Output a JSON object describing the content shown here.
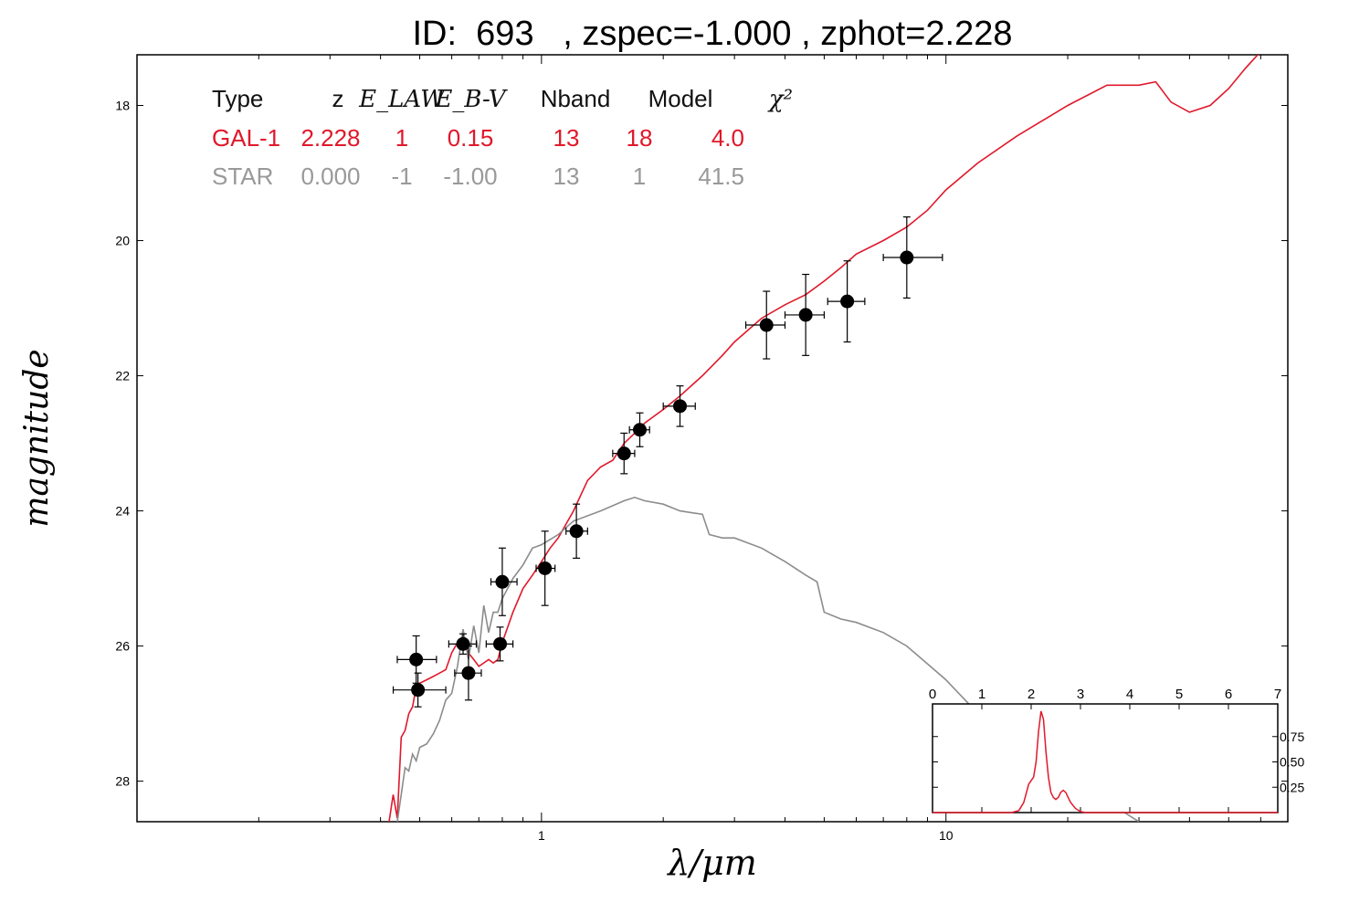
{
  "title": "ID:  693   , zspec=-1.000 , zphot=2.228",
  "chart_data": {
    "type": "scatter",
    "xlabel": "λ/μm",
    "ylabel": "magnitude",
    "x_scale": "log",
    "xlim": [
      0.1,
      70
    ],
    "ylim": [
      28.6,
      17.25
    ],
    "xticks": [
      1,
      10
    ],
    "yticks": [
      18,
      20,
      22,
      24,
      26,
      28
    ],
    "points": [
      {
        "x": 0.49,
        "y": 26.2,
        "xerr": [
          0.44,
          0.55
        ],
        "yerr": [
          25.85,
          26.55
        ]
      },
      {
        "x": 0.495,
        "y": 26.65,
        "xerr": [
          0.43,
          0.58
        ],
        "yerr": [
          26.4,
          26.9
        ]
      },
      {
        "x": 0.64,
        "y": 25.97,
        "xerr": [
          0.59,
          0.69
        ],
        "yerr": [
          25.82,
          26.12
        ]
      },
      {
        "x": 0.66,
        "y": 26.4,
        "xerr": [
          0.61,
          0.71
        ],
        "yerr": [
          26.0,
          26.8
        ]
      },
      {
        "x": 0.79,
        "y": 25.97,
        "xerr": [
          0.73,
          0.85
        ],
        "yerr": [
          25.72,
          26.22
        ]
      },
      {
        "x": 0.8,
        "y": 25.05,
        "xerr": [
          0.75,
          0.87
        ],
        "yerr": [
          24.55,
          25.55
        ]
      },
      {
        "x": 1.02,
        "y": 24.85,
        "xerr": [
          0.97,
          1.08
        ],
        "yerr": [
          24.3,
          25.4
        ]
      },
      {
        "x": 1.22,
        "y": 24.3,
        "xerr": [
          1.15,
          1.3
        ],
        "yerr": [
          23.9,
          24.7
        ]
      },
      {
        "x": 1.6,
        "y": 23.15,
        "xerr": [
          1.5,
          1.7
        ],
        "yerr": [
          22.85,
          23.45
        ]
      },
      {
        "x": 1.75,
        "y": 22.8,
        "xerr": [
          1.65,
          1.85
        ],
        "yerr": [
          22.55,
          23.05
        ]
      },
      {
        "x": 2.2,
        "y": 22.45,
        "xerr": [
          2.0,
          2.4
        ],
        "yerr": [
          22.15,
          22.75
        ]
      },
      {
        "x": 3.6,
        "y": 21.25,
        "xerr": [
          3.2,
          4.0
        ],
        "yerr": [
          20.75,
          21.75
        ]
      },
      {
        "x": 4.5,
        "y": 21.1,
        "xerr": [
          4.0,
          5.0
        ],
        "yerr": [
          20.5,
          21.7
        ]
      },
      {
        "x": 5.7,
        "y": 20.9,
        "xerr": [
          5.1,
          6.3
        ],
        "yerr": [
          20.3,
          21.5
        ]
      },
      {
        "x": 8.0,
        "y": 20.25,
        "xerr": [
          7.0,
          9.8
        ],
        "yerr": [
          19.65,
          20.85
        ]
      }
    ],
    "series": [
      {
        "color": "#e0182a",
        "x": [
          0.42,
          0.43,
          0.44,
          0.45,
          0.46,
          0.47,
          0.48,
          0.49,
          0.5,
          0.52,
          0.54,
          0.56,
          0.58,
          0.6,
          0.62,
          0.64,
          0.66,
          0.68,
          0.7,
          0.72,
          0.74,
          0.76,
          0.78,
          0.8,
          0.85,
          0.9,
          0.95,
          1.0,
          1.05,
          1.1,
          1.2,
          1.3,
          1.4,
          1.5,
          1.6,
          1.7,
          1.8,
          2.0,
          2.2,
          2.5,
          2.8,
          3.0,
          3.5,
          4.0,
          4.5,
          5.0,
          5.5,
          6.0,
          7.0,
          8.0,
          9.0,
          10.0,
          12.0,
          15.0,
          20.0,
          25.0,
          30.0,
          33.0,
          36.0,
          40.0,
          45.0,
          50.0,
          55.0,
          60.0
        ],
        "y": [
          28.6,
          28.2,
          28.55,
          27.35,
          27.25,
          27.0,
          26.9,
          26.6,
          26.55,
          26.5,
          26.45,
          26.4,
          26.35,
          26.1,
          25.95,
          25.95,
          26.1,
          26.2,
          26.3,
          26.25,
          26.2,
          26.25,
          26.2,
          25.95,
          25.5,
          25.15,
          24.95,
          24.75,
          24.55,
          24.4,
          24.0,
          23.55,
          23.35,
          23.25,
          23.0,
          22.85,
          22.7,
          22.5,
          22.3,
          22.0,
          21.7,
          21.5,
          21.15,
          20.95,
          20.8,
          20.6,
          20.4,
          20.2,
          20.0,
          19.8,
          19.55,
          19.25,
          18.85,
          18.45,
          18.0,
          17.7,
          17.7,
          17.65,
          17.95,
          18.1,
          18.0,
          17.75,
          17.45,
          17.2
        ]
      },
      {
        "color": "#8c8c8c",
        "x": [
          0.44,
          0.45,
          0.46,
          0.47,
          0.48,
          0.49,
          0.5,
          0.52,
          0.54,
          0.56,
          0.58,
          0.6,
          0.62,
          0.64,
          0.66,
          0.68,
          0.7,
          0.72,
          0.74,
          0.76,
          0.78,
          0.8,
          0.85,
          0.9,
          0.95,
          1.0,
          1.1,
          1.2,
          1.4,
          1.6,
          1.7,
          1.8,
          2.0,
          2.2,
          2.5,
          2.6,
          2.8,
          3.0,
          3.5,
          4.0,
          4.5,
          4.8,
          5.0,
          5.5,
          6.0,
          7.0,
          8.0,
          10.0,
          12.0,
          15.0,
          20.0,
          25.0,
          30.0
        ],
        "y": [
          28.6,
          28.2,
          27.8,
          27.85,
          27.6,
          27.7,
          27.5,
          27.45,
          27.3,
          27.1,
          26.8,
          26.7,
          26.3,
          25.75,
          26.2,
          25.7,
          26.1,
          25.4,
          25.8,
          25.5,
          25.5,
          25.3,
          25.0,
          24.8,
          24.55,
          24.5,
          24.35,
          24.15,
          24.0,
          23.85,
          23.8,
          23.85,
          23.9,
          24.0,
          24.05,
          24.35,
          24.4,
          24.4,
          24.55,
          24.75,
          24.95,
          25.05,
          25.5,
          25.6,
          25.65,
          25.8,
          26.0,
          26.5,
          27.0,
          27.4,
          27.85,
          28.3,
          28.6
        ]
      }
    ],
    "legend_table": {
      "headers": [
        "Type",
        "z",
        "E_LAW",
        "E_B-V",
        "Nband",
        "Model",
        "χ²"
      ],
      "rows": [
        {
          "color": "#e0182a",
          "cells": [
            "GAL-1",
            "2.228",
            "1",
            "0.15",
            "13",
            "18",
            "4.0"
          ]
        },
        {
          "color": "#999999",
          "cells": [
            "STAR",
            "0.000",
            "-1",
            "-1.00",
            "13",
            "1",
            "41.5"
          ]
        }
      ]
    },
    "inset": {
      "type": "line",
      "xlim": [
        0,
        7
      ],
      "ylim": [
        0,
        1.0
      ],
      "xticks": [
        0,
        1,
        2,
        3,
        4,
        5,
        6,
        7
      ],
      "yticks": [
        0.25,
        0.5,
        0.75
      ],
      "ytick_labels": [
        "0.25",
        "0.50",
        "0.75"
      ],
      "series": [
        {
          "color": "#e0182a",
          "x": [
            0,
            1.6,
            1.75,
            1.85,
            1.95,
            2.05,
            2.1,
            2.15,
            2.2,
            2.25,
            2.3,
            2.35,
            2.4,
            2.45,
            2.5,
            2.55,
            2.6,
            2.65,
            2.7,
            2.75,
            2.8,
            2.9,
            3.0,
            3.1,
            7.0
          ],
          "y": [
            0,
            0,
            0.02,
            0.1,
            0.28,
            0.35,
            0.5,
            0.8,
            1.0,
            0.92,
            0.6,
            0.35,
            0.2,
            0.15,
            0.13,
            0.15,
            0.2,
            0.22,
            0.2,
            0.15,
            0.1,
            0.04,
            0.01,
            0,
            0
          ]
        }
      ]
    }
  }
}
